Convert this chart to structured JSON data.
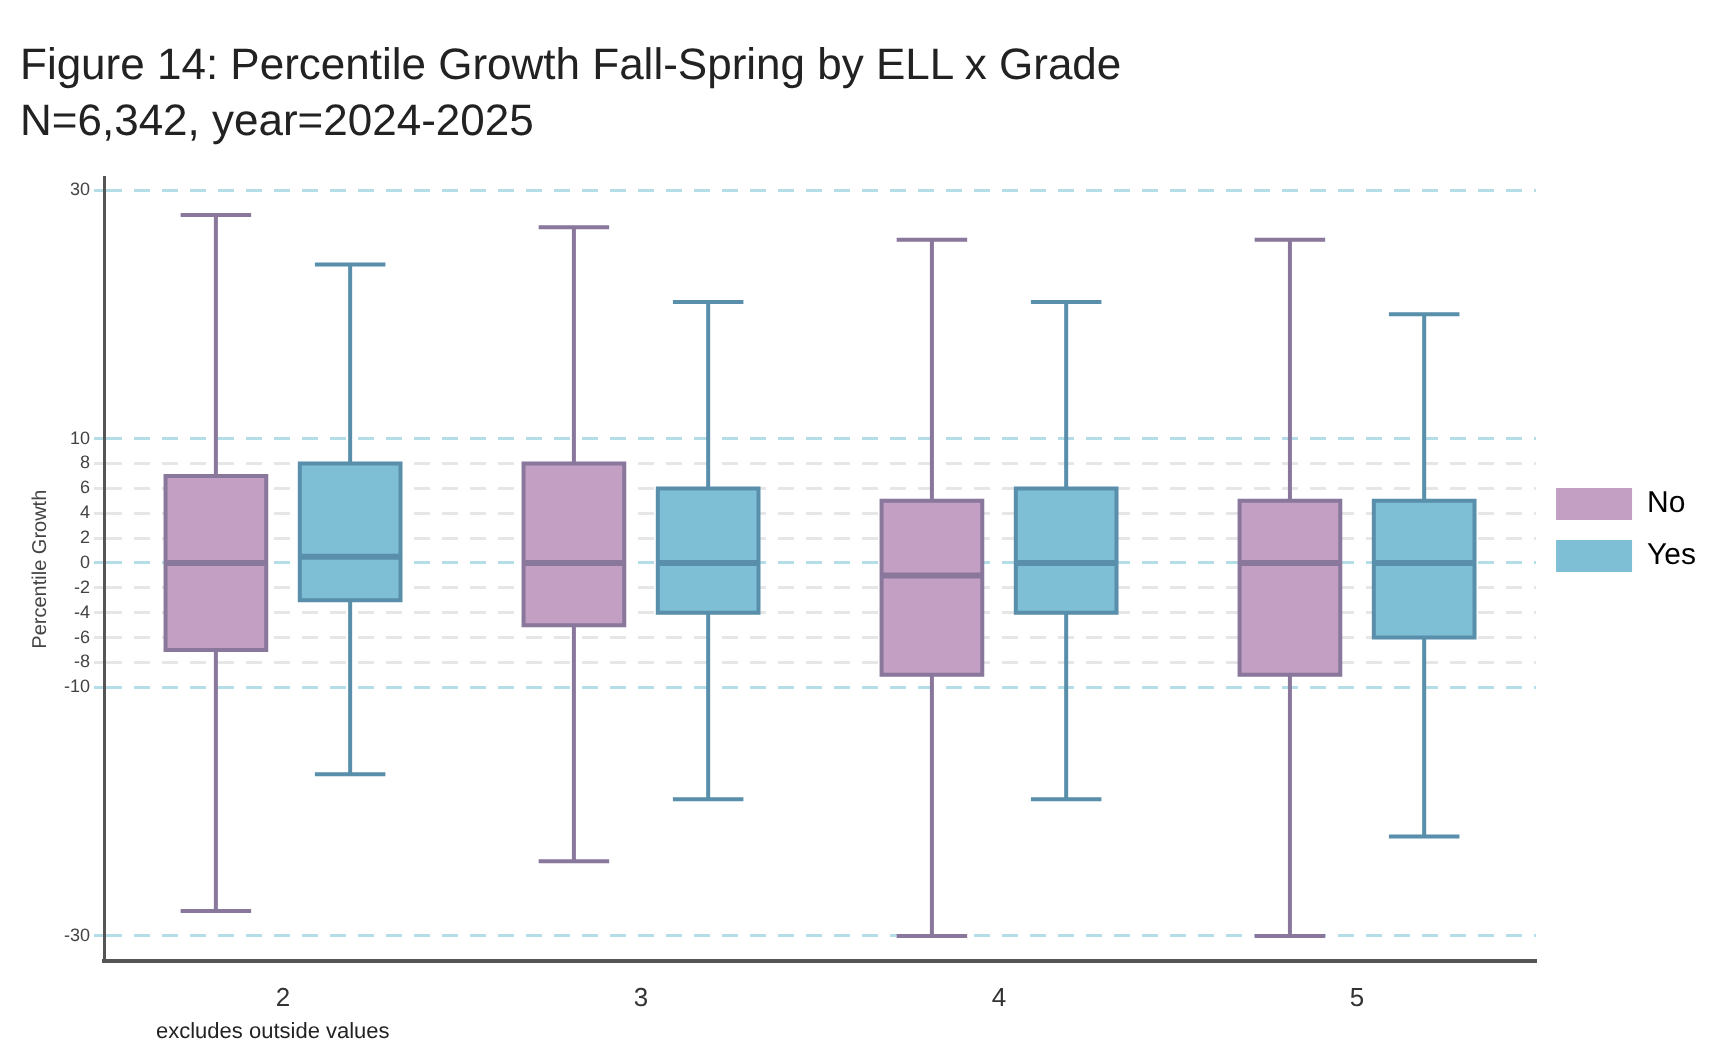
{
  "chart_data": {
    "type": "box",
    "title": "Figure 14: Percentile Growth Fall-Spring by ELL x Grade",
    "subtitle": "N=6,342, year=2024-2025",
    "ylabel": "Percentile Growth",
    "categories": [
      "2",
      "3",
      "4",
      "5"
    ],
    "series": [
      {
        "name": "No",
        "color": "#c39fc3",
        "boxes": [
          {
            "low": -28,
            "q1": -7,
            "median": 0,
            "q3": 7,
            "high": 28
          },
          {
            "low": -24,
            "q1": -5,
            "median": 0,
            "q3": 8,
            "high": 27
          },
          {
            "low": -30,
            "q1": -9,
            "median": -1,
            "q3": 5,
            "high": 26
          },
          {
            "low": -30,
            "q1": -9,
            "median": 0,
            "q3": 5,
            "high": 26
          }
        ]
      },
      {
        "name": "Yes",
        "color": "#7fbfd6",
        "boxes": [
          {
            "low": -17,
            "q1": -3,
            "median": 0.5,
            "q3": 8,
            "high": 24
          },
          {
            "low": -19,
            "q1": -4,
            "median": 0,
            "q3": 6,
            "high": 21
          },
          {
            "low": -19,
            "q1": -4,
            "median": 0,
            "q3": 6,
            "high": 21
          },
          {
            "low": -22,
            "q1": -6,
            "median": 0,
            "q3": 5,
            "high": 20
          }
        ]
      }
    ],
    "ylim": [
      -32,
      31
    ],
    "yticks": [
      -30,
      -10,
      -8,
      -6,
      -4,
      -2,
      0,
      2,
      4,
      6,
      8,
      10,
      30
    ],
    "grid": "y",
    "legend": "right",
    "annotations": [
      "excludes outside values"
    ]
  }
}
